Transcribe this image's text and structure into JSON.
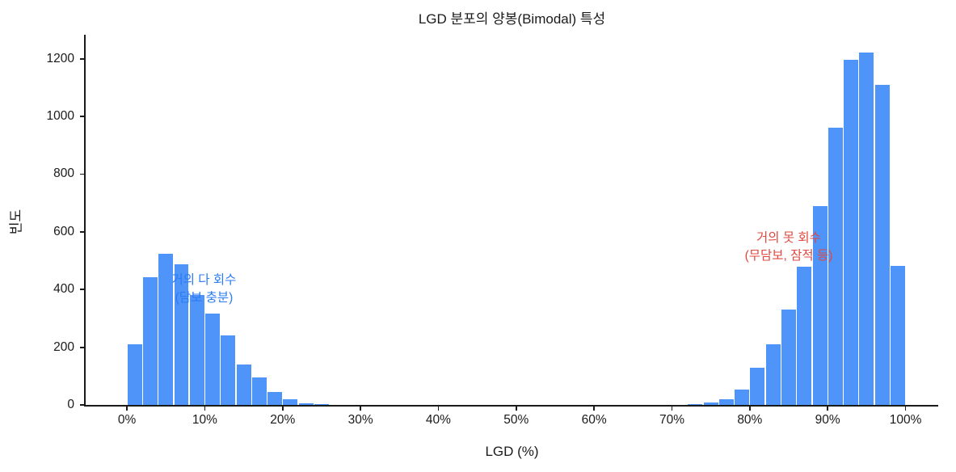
{
  "chart_data": {
    "type": "bar",
    "subtype": "histogram",
    "title": "LGD 분포의 양봉(Bimodal) 특성",
    "xlabel": "LGD (%)",
    "ylabel": "빈도",
    "grid": false,
    "legend": "none",
    "background_color": "#ffffff",
    "bar_color": "#4e94f9",
    "bar_edge_color": "#ffffff",
    "axis_color": "#1a1a1a",
    "xlim": [
      -5.3,
      104.2
    ],
    "ylim": [
      0,
      1283
    ],
    "bin_width": 2,
    "bars": [
      {
        "bin_start": 0,
        "count": 210
      },
      {
        "bin_start": 2,
        "count": 442
      },
      {
        "bin_start": 4,
        "count": 525
      },
      {
        "bin_start": 6,
        "count": 488
      },
      {
        "bin_start": 8,
        "count": 380
      },
      {
        "bin_start": 10,
        "count": 316
      },
      {
        "bin_start": 12,
        "count": 240
      },
      {
        "bin_start": 14,
        "count": 140
      },
      {
        "bin_start": 16,
        "count": 96
      },
      {
        "bin_start": 18,
        "count": 45
      },
      {
        "bin_start": 20,
        "count": 20
      },
      {
        "bin_start": 22,
        "count": 7
      },
      {
        "bin_start": 24,
        "count": 2
      },
      {
        "bin_start": 72,
        "count": 3
      },
      {
        "bin_start": 74,
        "count": 8
      },
      {
        "bin_start": 76,
        "count": 21
      },
      {
        "bin_start": 78,
        "count": 52
      },
      {
        "bin_start": 80,
        "count": 130
      },
      {
        "bin_start": 82,
        "count": 210
      },
      {
        "bin_start": 84,
        "count": 330
      },
      {
        "bin_start": 86,
        "count": 480
      },
      {
        "bin_start": 88,
        "count": 690
      },
      {
        "bin_start": 90,
        "count": 960
      },
      {
        "bin_start": 92,
        "count": 1195
      },
      {
        "bin_start": 94,
        "count": 1220
      },
      {
        "bin_start": 96,
        "count": 1110
      },
      {
        "bin_start": 98,
        "count": 483
      }
    ],
    "x_ticks": [
      {
        "value": 0,
        "label": "0%"
      },
      {
        "value": 10,
        "label": "10%"
      },
      {
        "value": 20,
        "label": "20%"
      },
      {
        "value": 30,
        "label": "30%"
      },
      {
        "value": 40,
        "label": "40%"
      },
      {
        "value": 50,
        "label": "50%"
      },
      {
        "value": 60,
        "label": "60%"
      },
      {
        "value": 70,
        "label": "70%"
      },
      {
        "value": 80,
        "label": "80%"
      },
      {
        "value": 90,
        "label": "90%"
      },
      {
        "value": 100,
        "label": "100%"
      }
    ],
    "y_ticks": [
      {
        "value": 0,
        "label": "0"
      },
      {
        "value": 200,
        "label": "200"
      },
      {
        "value": 400,
        "label": "400"
      },
      {
        "value": 600,
        "label": "600"
      },
      {
        "value": 800,
        "label": "800"
      },
      {
        "value": 1000,
        "label": "1000"
      },
      {
        "value": 1200,
        "label": "1200"
      }
    ],
    "annotations": [
      {
        "lines": [
          "거의 다 회수",
          "(담보 충분)"
        ],
        "color": "#2b7bf3",
        "x": 9.9,
        "y": 400
      },
      {
        "lines": [
          "거의 못 회수",
          "(무담보, 잠적 등)"
        ],
        "color": "#e0483f",
        "x": 85.0,
        "y": 545
      }
    ]
  }
}
